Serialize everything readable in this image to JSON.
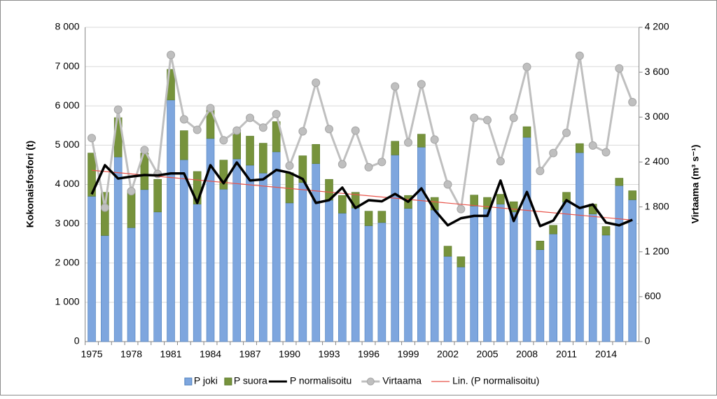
{
  "chart_data": {
    "type": "bar",
    "categories": [
      "1975",
      null,
      null,
      "1978",
      null,
      null,
      "1981",
      null,
      null,
      "1984",
      null,
      null,
      "1987",
      null,
      null,
      "1990",
      null,
      null,
      "1993",
      null,
      null,
      "1996",
      null,
      null,
      "1999",
      null,
      null,
      "2002",
      null,
      null,
      "2005",
      null,
      null,
      "2008",
      null,
      null,
      "2011",
      null,
      null,
      "2014",
      null,
      null
    ],
    "y_label": "Kokonaisfosfori (t)",
    "y2_label": "Virtaama (m³ s⁻¹)",
    "ylim": [
      0,
      8000
    ],
    "yticks": [
      0,
      {
        "value": 1000,
        "label": "1 000"
      },
      {
        "value": 2000,
        "label": "2 000"
      },
      {
        "value": 3000,
        "label": "3 000"
      },
      {
        "value": 4000,
        "label": "4 000"
      },
      {
        "value": 5000,
        "label": "5 000"
      },
      {
        "value": 6000,
        "label": "6 000"
      },
      {
        "value": 7000,
        "label": "7 000"
      },
      {
        "value": 8000,
        "label": "8 000"
      }
    ],
    "y2lim": [
      0,
      4200
    ],
    "y2ticks": [
      0,
      600,
      {
        "value": 1200,
        "label": "1 200"
      },
      {
        "value": 1800,
        "label": "1 800"
      },
      {
        "value": 2400,
        "label": "2 400"
      },
      {
        "value": 3000,
        "label": "3 000"
      },
      {
        "value": 3600,
        "label": "3 600"
      },
      {
        "value": 4200,
        "label": "4 200"
      }
    ],
    "grid": true,
    "legend": "bottom",
    "series": [
      {
        "name": "P joki",
        "type": "bar",
        "color": "#7ea6de",
        "values": [
          3700,
          2700,
          4700,
          2900,
          3870,
          3300,
          6150,
          4630,
          3500,
          5170,
          3880,
          4650,
          4490,
          4290,
          4830,
          3530,
          4050,
          4530,
          3600,
          3270,
          3400,
          2950,
          3030,
          4750,
          3390,
          4950,
          3350,
          2170,
          1900,
          3450,
          3380,
          3500,
          3300,
          5200,
          2340,
          2740,
          3550,
          4810,
          3250,
          2710,
          3970,
          3610
        ]
      },
      {
        "name": "P suora",
        "type": "bar",
        "color": "#77933c",
        "values": [
          1100,
          1100,
          1000,
          950,
          930,
          830,
          780,
          740,
          830,
          730,
          740,
          680,
          740,
          760,
          770,
          770,
          680,
          490,
          530,
          450,
          400,
          370,
          290,
          350,
          330,
          330,
          320,
          260,
          260,
          280,
          290,
          250,
          260,
          270,
          220,
          220,
          250,
          230,
          250,
          220,
          190,
          230
        ]
      },
      {
        "name": "P normalisoitu",
        "type": "line",
        "color": "#000000",
        "values": [
          3750,
          4490,
          4150,
          4200,
          4240,
          4230,
          4280,
          4280,
          3530,
          4490,
          4030,
          4560,
          4100,
          4130,
          4370,
          4300,
          4140,
          3530,
          3600,
          3920,
          3400,
          3600,
          3570,
          3760,
          3560,
          3900,
          3350,
          2960,
          3140,
          3200,
          3200,
          4100,
          3070,
          3810,
          2940,
          3080,
          3600,
          3400,
          3490,
          3030,
          2960,
          3100
        ]
      },
      {
        "name": "Virtaama",
        "type": "line",
        "axis": "y2",
        "markers": true,
        "color": "#bfbfbf",
        "values": [
          2720,
          1790,
          3100,
          2010,
          2560,
          2240,
          3830,
          2970,
          2830,
          3120,
          2690,
          2820,
          2990,
          2860,
          3040,
          2350,
          2810,
          3460,
          2840,
          2370,
          2820,
          2330,
          2400,
          3410,
          2660,
          3440,
          2700,
          2100,
          1770,
          2990,
          2960,
          2410,
          2990,
          3670,
          2280,
          2520,
          2790,
          3820,
          2620,
          2530,
          3650,
          3200
        ]
      },
      {
        "name": "Lin. (P normalisoitu)",
        "type": "trend",
        "trend_of": 2,
        "color": "#e8534a"
      }
    ]
  }
}
